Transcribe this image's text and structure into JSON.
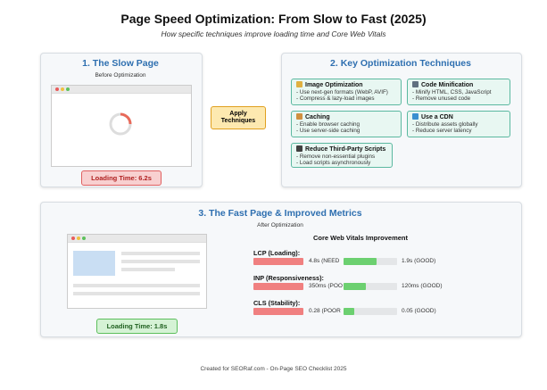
{
  "header": {
    "title": "Page Speed Optimization: From Slow to Fast (2025)",
    "subtitle": "How specific techniques improve loading time and Core Web Vitals"
  },
  "slow_page": {
    "title": "1. The Slow Page",
    "subtitle": "Before Optimization",
    "loading": "Loading Time: 6.2s"
  },
  "arrow": {
    "label": "Apply Techniques"
  },
  "techniques": {
    "title": "2. Key Optimization Techniques",
    "cards": [
      {
        "title": "Image Optimization",
        "items": [
          "- Use next-gen formats (WebP, AVIF)",
          "- Compress & lazy-load images"
        ]
      },
      {
        "title": "Code Minification",
        "items": [
          "- Minify HTML, CSS, JavaScript",
          "- Remove unused code"
        ]
      },
      {
        "title": "Caching",
        "items": [
          "- Enable browser caching",
          "- Use server-side caching"
        ]
      },
      {
        "title": "Use a CDN",
        "items": [
          "- Distribute assets globally",
          "- Reduce server latency"
        ]
      },
      {
        "title": "Reduce Third-Party Scripts",
        "items": [
          "- Remove non-essential plugins",
          "- Load scripts asynchronously"
        ]
      }
    ]
  },
  "fast_page": {
    "title": "3. The Fast Page & Improved Metrics",
    "subtitle": "After Optimization",
    "loading": "Loading Time: 1.8s",
    "metrics_title": "Core Web Vitals Improvement",
    "metrics": [
      {
        "label": "LCP (Loading):",
        "before": "4.8s (NEED",
        "after": "1.9s (GOOD)"
      },
      {
        "label": "INP (Responsiveness):",
        "before": "350ms (POO",
        "after": "120ms (GOOD)"
      },
      {
        "label": "CLS (Stability):",
        "before": "0.28 (POOR",
        "after": "0.05 (GOOD)"
      }
    ]
  },
  "footer": "Created for SEORaf.com - On-Page SEO Checklist 2025"
}
